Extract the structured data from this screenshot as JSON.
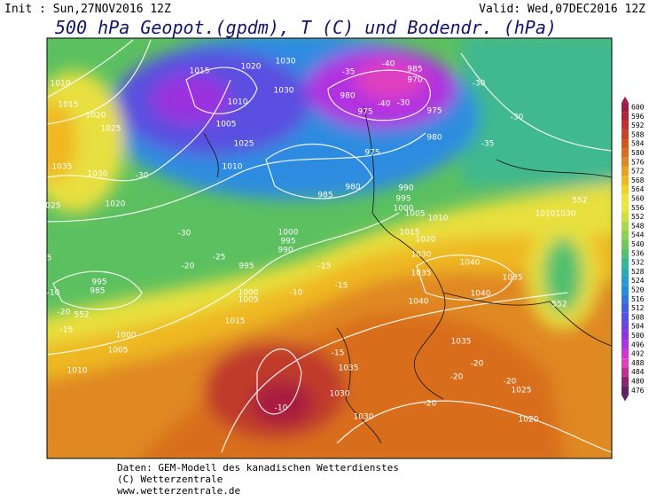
{
  "header": {
    "init": "Init : Sun,27NOV2016 12Z",
    "valid": "Valid: Wed,07DEC2016 12Z",
    "title": "500 hPa Geopot.(gpdm), T (C) und Bodendr. (hPa)"
  },
  "footer": [
    "Daten: GEM-Modell des kanadischen Wetterdienstes",
    "(C) Wetterzentrale",
    "www.wetterzentrale.de"
  ],
  "color_scale": {
    "levels": [
      600,
      596,
      592,
      588,
      584,
      580,
      576,
      572,
      568,
      564,
      560,
      556,
      552,
      548,
      544,
      540,
      536,
      532,
      528,
      524,
      520,
      516,
      512,
      508,
      504,
      500,
      496,
      492,
      488,
      484,
      480,
      476
    ],
    "colors": [
      "#a01c48",
      "#b02438",
      "#c03030",
      "#c84422",
      "#d05818",
      "#d86e1c",
      "#e08820",
      "#e8a020",
      "#eeb820",
      "#f0d024",
      "#f0e040",
      "#e6e83c",
      "#cce044",
      "#acd84a",
      "#8ed052",
      "#70c85a",
      "#50c070",
      "#34b890",
      "#22b0b0",
      "#20a0d0",
      "#2090e0",
      "#3078e0",
      "#4060e0",
      "#5650e0",
      "#7040e0",
      "#9030e0",
      "#b030e0",
      "#d034d4",
      "#e040c0",
      "#c03090",
      "#902070",
      "#602060"
    ]
  },
  "map_labels": [
    "1010",
    "1015",
    "1020",
    "1025",
    "1035",
    "1030",
    "1025",
    "1020",
    "1005",
    "995",
    "985",
    "1000",
    "1005",
    "1010",
    "1015",
    "1000",
    "1005",
    "995",
    "990",
    "995",
    "1000",
    "1010",
    "1015",
    "1020",
    "1030",
    "1030",
    "1005",
    "1025",
    "1010",
    "975",
    "985",
    "980",
    "980",
    "975",
    "985",
    "970",
    "975",
    "980",
    "990",
    "995",
    "1000",
    "1005",
    "1010",
    "1015",
    "1020",
    "1030",
    "1040",
    "1035",
    "1040",
    "1040",
    "1035",
    "1035",
    "1035",
    "1030",
    "1030",
    "1025",
    "1020",
    "1010",
    "1030",
    "552",
    "552",
    "552",
    "-40",
    "-40",
    "-35",
    "-30",
    "-30",
    "-30",
    "-35",
    "-30",
    "-30",
    "-25",
    "-20",
    "-15",
    "-15",
    "-10",
    "-10",
    "-15",
    "-20",
    "-20",
    "-20",
    "-20",
    "-20",
    "-15",
    "-10"
  ]
}
